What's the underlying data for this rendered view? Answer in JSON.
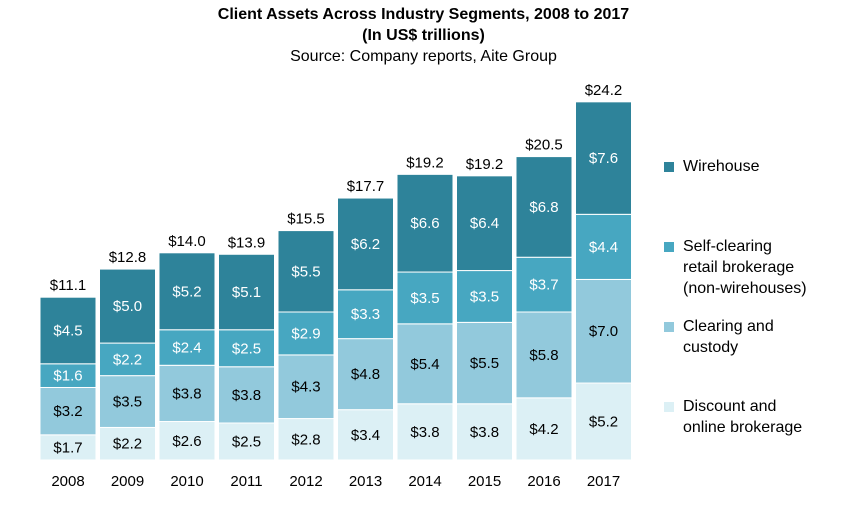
{
  "chart_data": {
    "type": "bar",
    "stacked": true,
    "title": "Client Assets Across Industry Segments, 2008 to 2017",
    "subtitle": "(In US$ trillions)",
    "source": "Source: Company  reports, Aite Group",
    "categories": [
      "2008",
      "2009",
      "2010",
      "2011",
      "2012",
      "2013",
      "2014",
      "2015",
      "2016",
      "2017"
    ],
    "totals": [
      "$11.1",
      "$12.8",
      "$14.0",
      "$13.9",
      "$15.5",
      "$17.7",
      "$19.2",
      "$19.2",
      "$20.5",
      "$24.2"
    ],
    "series": [
      {
        "name": "Discount and\nonline brokerage",
        "color": "#dcf0f5",
        "values": [
          1.7,
          2.2,
          2.6,
          2.5,
          2.8,
          3.4,
          3.8,
          3.8,
          4.2,
          5.2
        ],
        "labels": [
          "$1.7",
          "$2.2",
          "$2.6",
          "$2.5",
          "$2.8",
          "$3.4",
          "$3.8",
          "$3.8",
          "$4.2",
          "$5.2"
        ]
      },
      {
        "name": "Clearing and\ncustody",
        "color": "#92c9dc",
        "values": [
          3.2,
          3.5,
          3.8,
          3.8,
          4.3,
          4.8,
          5.4,
          5.5,
          5.8,
          7.0
        ],
        "labels": [
          "$3.2",
          "$3.5",
          "$3.8",
          "$3.8",
          "$4.3",
          "$4.8",
          "$5.4",
          "$5.5",
          "$5.8",
          "$7.0"
        ]
      },
      {
        "name": "Self-clearing\nretail brokerage\n(non-wirehouses)",
        "color": "#47a7c1",
        "values": [
          1.6,
          2.2,
          2.4,
          2.5,
          2.9,
          3.3,
          3.5,
          3.5,
          3.7,
          4.4
        ],
        "labels": [
          "$1.6",
          "$2.2",
          "$2.4",
          "$2.5",
          "$2.9",
          "$3.3",
          "$3.5",
          "$3.5",
          "$3.7",
          "$4.4"
        ]
      },
      {
        "name": "Wirehouse",
        "color": "#2e839a",
        "values": [
          4.5,
          5.0,
          5.2,
          5.1,
          5.5,
          6.2,
          6.6,
          6.4,
          6.8,
          7.6
        ],
        "labels": [
          "$4.5",
          "$5.0",
          "$5.2",
          "$5.1",
          "$5.5",
          "$6.2",
          "$6.6",
          "$6.4",
          "$6.8",
          "$7.6"
        ]
      }
    ],
    "legend_order": [
      3,
      2,
      1,
      0
    ],
    "legend_position": "right",
    "grid": false
  }
}
